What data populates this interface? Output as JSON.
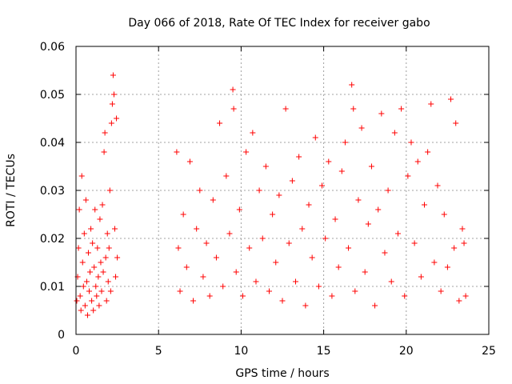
{
  "chart_data": {
    "type": "scatter",
    "title": "Day 066 of 2018, Rate Of TEC Index for receiver gabo",
    "xlabel": "GPS time / hours",
    "ylabel": "ROTI / TECUs",
    "xlim": [
      0,
      25
    ],
    "ylim": [
      0,
      0.06
    ],
    "x_ticks": [
      0,
      5,
      10,
      15,
      20,
      25
    ],
    "x_tick_labels": [
      "0",
      "5",
      "10",
      "15",
      "20",
      "25"
    ],
    "y_ticks": [
      0,
      0.01,
      0.02,
      0.03,
      0.04,
      0.05,
      0.06
    ],
    "y_tick_labels": [
      "0",
      "0.01",
      "0.02",
      "0.03",
      "0.04",
      "0.05",
      "0.06"
    ],
    "grid": true,
    "marker": "+",
    "color": "#ff0000",
    "series": [
      {
        "name": "ROTI",
        "note": "dense band of points ~0.003–0.02 TECU/s with spikes; data gap between ~2.6 h and ~5.9 h",
        "points": [
          [
            0.05,
            0.007
          ],
          [
            0.1,
            0.012
          ],
          [
            0.15,
            0.018
          ],
          [
            0.2,
            0.026
          ],
          [
            0.25,
            0.008
          ],
          [
            0.3,
            0.005
          ],
          [
            0.35,
            0.033
          ],
          [
            0.4,
            0.015
          ],
          [
            0.45,
            0.01
          ],
          [
            0.5,
            0.021
          ],
          [
            0.55,
            0.006
          ],
          [
            0.6,
            0.028
          ],
          [
            0.65,
            0.011
          ],
          [
            0.7,
            0.004
          ],
          [
            0.75,
            0.017
          ],
          [
            0.8,
            0.009
          ],
          [
            0.85,
            0.013
          ],
          [
            0.9,
            0.022
          ],
          [
            0.95,
            0.007
          ],
          [
            1.0,
            0.019
          ],
          [
            1.05,
            0.005
          ],
          [
            1.1,
            0.014
          ],
          [
            1.15,
            0.026
          ],
          [
            1.2,
            0.01
          ],
          [
            1.25,
            0.008
          ],
          [
            1.3,
            0.018
          ],
          [
            1.35,
            0.012
          ],
          [
            1.4,
            0.006
          ],
          [
            1.45,
            0.024
          ],
          [
            1.5,
            0.015
          ],
          [
            1.55,
            0.009
          ],
          [
            1.6,
            0.027
          ],
          [
            1.65,
            0.013
          ],
          [
            1.7,
            0.038
          ],
          [
            1.75,
            0.042
          ],
          [
            1.8,
            0.016
          ],
          [
            1.85,
            0.007
          ],
          [
            1.9,
            0.021
          ],
          [
            1.95,
            0.011
          ],
          [
            2.0,
            0.018
          ],
          [
            2.05,
            0.03
          ],
          [
            2.1,
            0.009
          ],
          [
            2.15,
            0.044
          ],
          [
            2.2,
            0.048
          ],
          [
            2.25,
            0.054
          ],
          [
            2.3,
            0.05
          ],
          [
            2.35,
            0.022
          ],
          [
            2.4,
            0.012
          ],
          [
            2.45,
            0.045
          ],
          [
            2.5,
            0.016
          ],
          [
            6.1,
            0.038
          ],
          [
            6.2,
            0.018
          ],
          [
            6.3,
            0.009
          ],
          [
            6.5,
            0.025
          ],
          [
            6.7,
            0.014
          ],
          [
            6.9,
            0.036
          ],
          [
            7.1,
            0.007
          ],
          [
            7.3,
            0.022
          ],
          [
            7.5,
            0.03
          ],
          [
            7.7,
            0.012
          ],
          [
            7.9,
            0.019
          ],
          [
            8.1,
            0.008
          ],
          [
            8.3,
            0.028
          ],
          [
            8.5,
            0.016
          ],
          [
            8.7,
            0.044
          ],
          [
            8.9,
            0.01
          ],
          [
            9.1,
            0.033
          ],
          [
            9.3,
            0.021
          ],
          [
            9.5,
            0.051
          ],
          [
            9.55,
            0.047
          ],
          [
            9.7,
            0.013
          ],
          [
            9.9,
            0.026
          ],
          [
            10.1,
            0.008
          ],
          [
            10.3,
            0.038
          ],
          [
            10.5,
            0.018
          ],
          [
            10.7,
            0.042
          ],
          [
            10.9,
            0.011
          ],
          [
            11.1,
            0.03
          ],
          [
            11.3,
            0.02
          ],
          [
            11.5,
            0.035
          ],
          [
            11.7,
            0.009
          ],
          [
            11.9,
            0.025
          ],
          [
            12.1,
            0.015
          ],
          [
            12.3,
            0.029
          ],
          [
            12.5,
            0.007
          ],
          [
            12.7,
            0.047
          ],
          [
            12.9,
            0.019
          ],
          [
            13.1,
            0.032
          ],
          [
            13.3,
            0.011
          ],
          [
            13.5,
            0.037
          ],
          [
            13.7,
            0.022
          ],
          [
            13.9,
            0.006
          ],
          [
            14.1,
            0.027
          ],
          [
            14.3,
            0.016
          ],
          [
            14.5,
            0.041
          ],
          [
            14.7,
            0.01
          ],
          [
            14.9,
            0.031
          ],
          [
            15.1,
            0.02
          ],
          [
            15.3,
            0.036
          ],
          [
            15.5,
            0.008
          ],
          [
            15.7,
            0.024
          ],
          [
            15.9,
            0.014
          ],
          [
            16.1,
            0.034
          ],
          [
            16.3,
            0.04
          ],
          [
            16.5,
            0.018
          ],
          [
            16.7,
            0.052
          ],
          [
            16.8,
            0.047
          ],
          [
            16.9,
            0.009
          ],
          [
            17.1,
            0.028
          ],
          [
            17.3,
            0.043
          ],
          [
            17.5,
            0.013
          ],
          [
            17.7,
            0.023
          ],
          [
            17.9,
            0.035
          ],
          [
            18.1,
            0.006
          ],
          [
            18.3,
            0.026
          ],
          [
            18.5,
            0.046
          ],
          [
            18.7,
            0.017
          ],
          [
            18.9,
            0.03
          ],
          [
            19.1,
            0.011
          ],
          [
            19.3,
            0.042
          ],
          [
            19.5,
            0.021
          ],
          [
            19.7,
            0.047
          ],
          [
            19.9,
            0.008
          ],
          [
            20.1,
            0.033
          ],
          [
            20.3,
            0.04
          ],
          [
            20.5,
            0.019
          ],
          [
            20.7,
            0.036
          ],
          [
            20.9,
            0.012
          ],
          [
            21.1,
            0.027
          ],
          [
            21.3,
            0.038
          ],
          [
            21.5,
            0.048
          ],
          [
            21.7,
            0.015
          ],
          [
            21.9,
            0.031
          ],
          [
            22.1,
            0.009
          ],
          [
            22.3,
            0.025
          ],
          [
            22.5,
            0.014
          ],
          [
            22.7,
            0.049
          ],
          [
            22.9,
            0.018
          ],
          [
            23.0,
            0.044
          ],
          [
            23.2,
            0.007
          ],
          [
            23.4,
            0.022
          ],
          [
            23.5,
            0.019
          ],
          [
            23.6,
            0.008
          ]
        ]
      }
    ]
  }
}
